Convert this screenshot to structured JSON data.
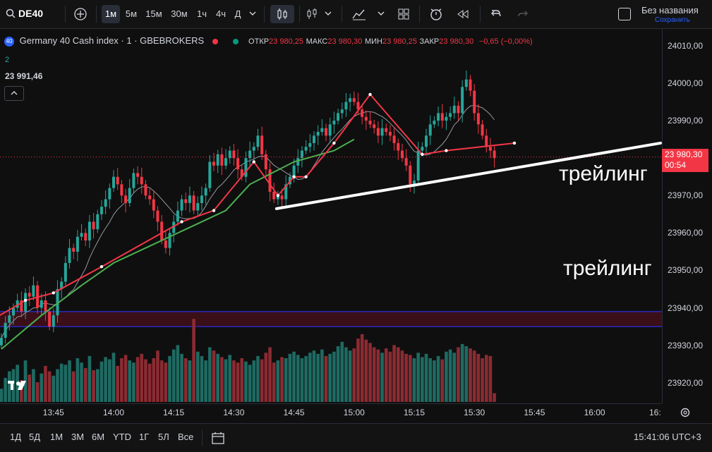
{
  "toolbar": {
    "symbol": "DE40",
    "intervals": [
      "1м",
      "5м",
      "15м",
      "30м",
      "1ч",
      "4ч",
      "Д"
    ],
    "selected_interval": "1м",
    "layout_name": "Без названия",
    "save_status": "Сохранить"
  },
  "legend": {
    "title": "Germany 40 Cash index · 1 · GBEBROKERS",
    "open_label": "ОТКР",
    "open": "23 980,25",
    "high_label": "МАКС",
    "high": "23 980,30",
    "low_label": "МИН",
    "low": "23 980,25",
    "close_label": "ЗАКР",
    "close": "23 980,30",
    "change": "−0,65 (−0,00%)",
    "indicator_count": "2",
    "indicator_value": "23 991,46"
  },
  "last_price": {
    "value": "23 980,30",
    "timer": "00:54"
  },
  "annotations": {
    "label_1": "трейлинг",
    "label_2": "трейлинг"
  },
  "bottombar": {
    "ranges": [
      "1Д",
      "5Д",
      "1М",
      "3М",
      "6М",
      "YTD",
      "1Г",
      "5Л",
      "Все"
    ],
    "clock": "15:41:06 UTC+3"
  },
  "colors": {
    "up": "#26a69a",
    "down": "#f23645",
    "bg": "#0f0f0f",
    "sma": "#4caf50",
    "zigzag": "#f23645"
  },
  "chart_data": {
    "type": "candlestick",
    "y_ticks": [
      24010,
      24000,
      23990,
      23980,
      23970,
      23960,
      23950,
      23940,
      23930,
      23920
    ],
    "y_tick_labels": [
      "24010,00",
      "24000,00",
      "23990,00",
      "23980,00",
      "23970,00",
      "23960,00",
      "23950,00",
      "23940,00",
      "23930,00",
      "23920,00"
    ],
    "ylim": [
      23914.5,
      24014.5
    ],
    "x_tick_labels": [
      "13:45",
      "14:00",
      "14:15",
      "14:30",
      "14:45",
      "15:00",
      "15:15",
      "15:30",
      "15:45",
      "16:00",
      "16:"
    ],
    "x_ticks_min": [
      -15,
      0,
      15,
      30,
      45,
      60,
      75,
      90,
      105,
      120,
      135
    ],
    "first_minute_offset": -28,
    "closes": [
      23932,
      23936,
      23938,
      23940,
      23942,
      23939,
      23944,
      23943,
      23946,
      23940,
      23942,
      23939,
      23935,
      23938,
      23945,
      23947,
      23952,
      23956,
      23955,
      23959,
      23960,
      23958,
      23963,
      23961,
      23965,
      23967,
      23969,
      23972,
      23975,
      23973,
      23970,
      23968,
      23972,
      23976,
      23975,
      23973,
      23970,
      23969,
      23966,
      23963,
      23958,
      23956,
      23960,
      23963,
      23966,
      23969,
      23968,
      23970,
      23966,
      23968,
      23970,
      23972,
      23979,
      23978,
      23981,
      23978,
      23980,
      23982,
      23980,
      23977,
      23975,
      23980,
      23982,
      23983,
      23986,
      23981,
      23977,
      23971,
      23969,
      23970,
      23969,
      23973,
      23975,
      23978,
      23980,
      23982,
      23983,
      23984,
      23986,
      23987,
      23988,
      23986,
      23989,
      23990,
      23992,
      23993,
      23995,
      23996,
      23995,
      23993,
      23991,
      23990,
      23989,
      23988,
      23986,
      23988,
      23987,
      23986,
      23984,
      23982,
      23980,
      23978,
      23973,
      23974,
      23982,
      23983,
      23986,
      23989,
      23990,
      23992,
      23990,
      23991,
      23992,
      23994,
      23992,
      23999,
      24001,
      23998,
      23992,
      23989,
      23986,
      23983,
      23982,
      23980
    ],
    "volumes": [
      12,
      22,
      28,
      30,
      34,
      20,
      38,
      25,
      30,
      18,
      26,
      33,
      28,
      24,
      30,
      35,
      34,
      38,
      28,
      40,
      36,
      31,
      42,
      29,
      30,
      37,
      41,
      39,
      45,
      33,
      40,
      43,
      38,
      36,
      41,
      44,
      39,
      35,
      40,
      47,
      38,
      36,
      42,
      48,
      52,
      44,
      40,
      38,
      76,
      46,
      42,
      38,
      50,
      47,
      44,
      41,
      39,
      43,
      38,
      36,
      40,
      37,
      34,
      38,
      42,
      39,
      45,
      50,
      36,
      38,
      41,
      40,
      44,
      46,
      43,
      40,
      42,
      45,
      47,
      44,
      48,
      42,
      44,
      46,
      51,
      55,
      50,
      47,
      49,
      58,
      62,
      57,
      54,
      50,
      48,
      45,
      49,
      46,
      52,
      50,
      47,
      44,
      43,
      40,
      45,
      41,
      44,
      40,
      38,
      42,
      39,
      46,
      48,
      45,
      50,
      53,
      51,
      49,
      47,
      44,
      40,
      43,
      42,
      8
    ],
    "sma_line": [
      [
        -28,
        23929
      ],
      [
        -18,
        23938
      ],
      [
        -8,
        23946
      ],
      [
        0,
        23952
      ],
      [
        10,
        23957
      ],
      [
        20,
        23962
      ],
      [
        28,
        23966
      ],
      [
        34,
        23973
      ],
      [
        45,
        23979
      ],
      [
        55,
        23982
      ],
      [
        60,
        23985
      ]
    ],
    "zigzag": [
      [
        -30,
        23937
      ],
      [
        -22,
        23942
      ],
      [
        -15,
        23944
      ],
      [
        -3,
        23951
      ],
      [
        17,
        23963
      ],
      [
        25,
        23966
      ],
      [
        35,
        23979
      ],
      [
        41,
        23970
      ],
      [
        45,
        23975
      ],
      [
        48,
        23975
      ],
      [
        55,
        23984
      ],
      [
        64,
        23997
      ],
      [
        77,
        23981
      ],
      [
        83,
        23982
      ],
      [
        100,
        23984
      ]
    ],
    "channel": [
      23935,
      23939
    ],
    "trend_line": {
      "from": [
        41,
        23966.5
      ],
      "to": [
        104,
        23984
      ]
    }
  }
}
